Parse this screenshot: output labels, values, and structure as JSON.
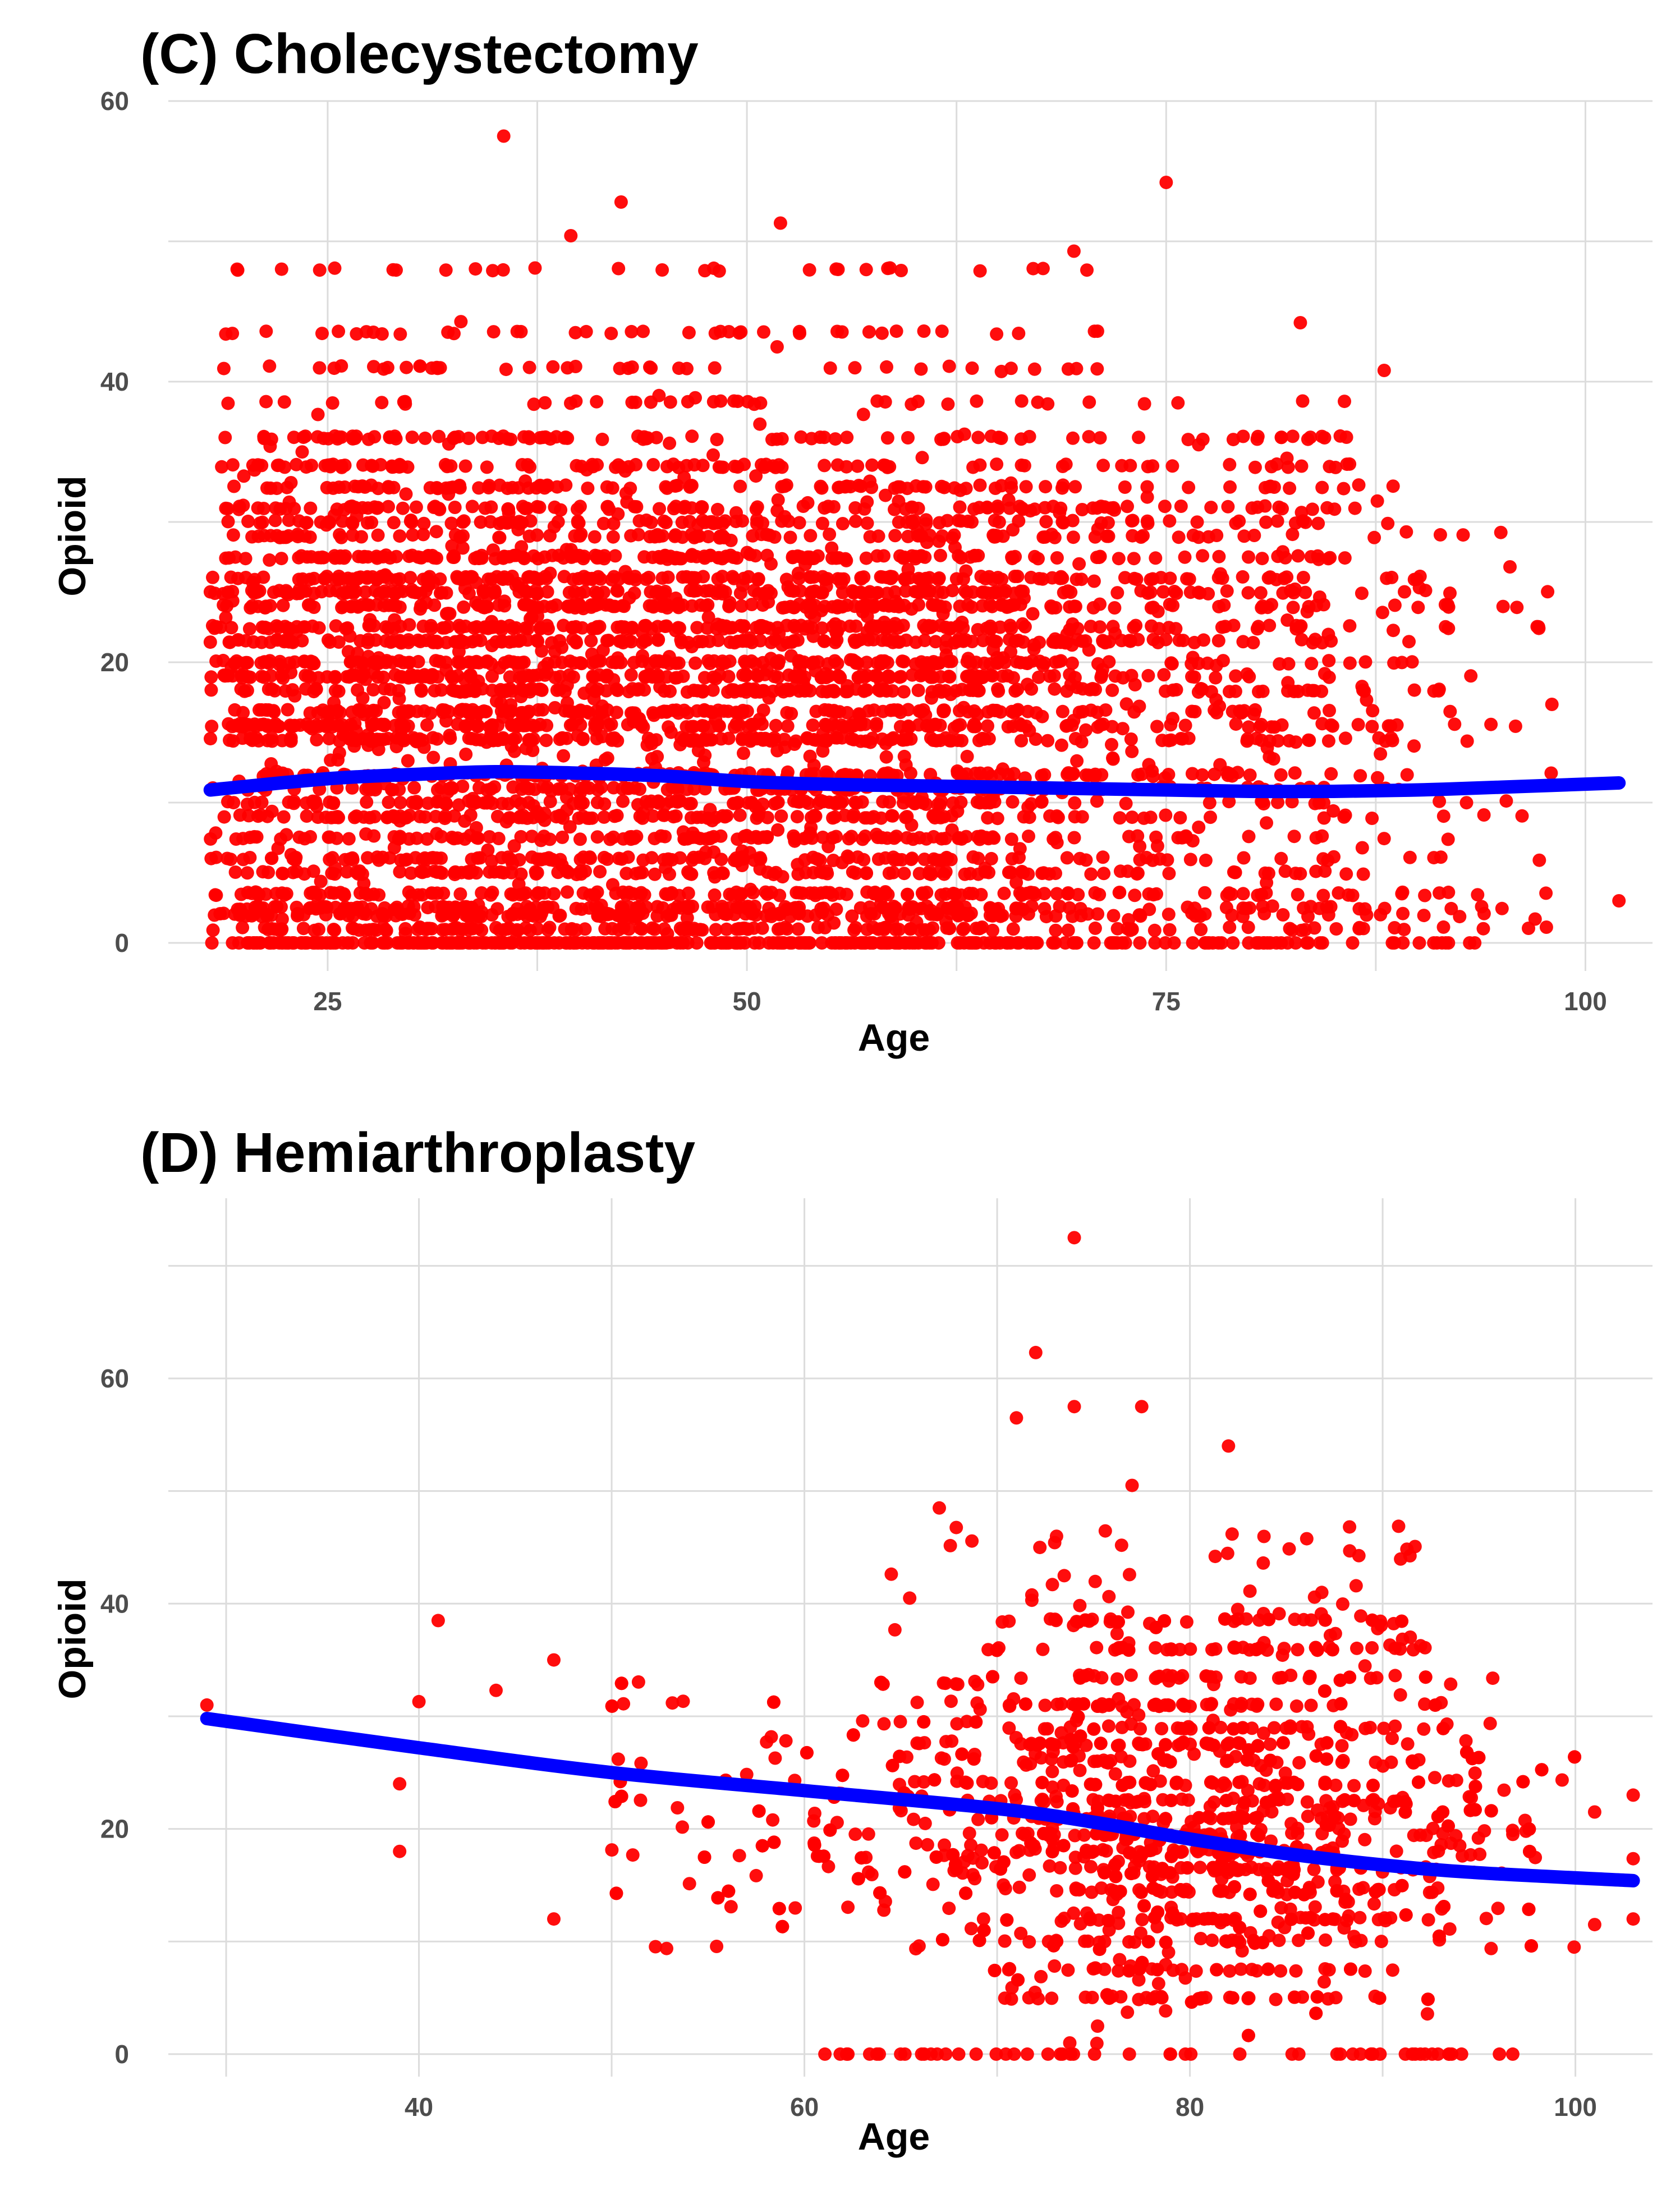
{
  "colors": {
    "points": "#ff0000",
    "trend": "#0000ff",
    "grid": "#dcdcdc",
    "background": "#ffffff"
  },
  "chart_data": [
    {
      "type": "scatter",
      "title": "(C) Cholecystectomy",
      "xlabel": "Age",
      "ylabel": "Opioid",
      "xlim": [
        15.5,
        104
      ],
      "ylim": [
        -2,
        60
      ],
      "xticks": [
        25,
        50,
        75,
        100
      ],
      "yticks": [
        0,
        20,
        40,
        60
      ],
      "grid": true,
      "legend": "none",
      "series": [
        {
          "name": "patients",
          "kind": "points",
          "description": "several thousand patients, ages 18-102; opioid values cluster on horizontal bands",
          "age_range": [
            18,
            102
          ],
          "bands": [
            0,
            1,
            2,
            2.5,
            3.5,
            5,
            6,
            7.5,
            9,
            10,
            11,
            12,
            14.5,
            15.5,
            16.5,
            18,
            19,
            20,
            21.5,
            22.5,
            24,
            25,
            26,
            27.5,
            29,
            30,
            31,
            32.5,
            34,
            36,
            38.5,
            41,
            43.5,
            48
          ],
          "outliers": [
            [
              35.5,
              57.5
            ],
            [
              42.5,
              52.8
            ],
            [
              52,
              51.3
            ],
            [
              39.5,
              50.4
            ],
            [
              75,
              54.2
            ],
            [
              69.5,
              49.3
            ],
            [
              83,
              44.2
            ],
            [
              88,
              40.8
            ],
            [
              102,
              3
            ],
            [
              97,
              1.7
            ],
            [
              98,
              17
            ],
            [
              95.5,
              26.8
            ]
          ]
        },
        {
          "name": "smooth fit",
          "kind": "line",
          "x": [
            18,
            25,
            30,
            35,
            40,
            45,
            50,
            55,
            60,
            65,
            70,
            75,
            80,
            85,
            90,
            95,
            102
          ],
          "y": [
            10.9,
            11.7,
            12.0,
            12.2,
            12.1,
            11.9,
            11.5,
            11.3,
            11.2,
            11.1,
            11.0,
            10.9,
            10.8,
            10.8,
            10.9,
            11.1,
            11.4
          ]
        }
      ]
    },
    {
      "type": "scatter",
      "title": "(D) Hemiarthroplasty",
      "xlabel": "Age",
      "ylabel": "Opioid",
      "xlim": [
        27,
        104
      ],
      "ylim": [
        -2,
        76
      ],
      "xticks": [
        40,
        60,
        80,
        100
      ],
      "yticks": [
        0,
        20,
        40,
        60
      ],
      "grid": true,
      "legend": "none",
      "series": [
        {
          "name": "patients",
          "kind": "points",
          "description": "about 1500 patients, concentrated at ages 70-95 with opioid 5-35",
          "age_range": [
            29,
            103
          ],
          "bands": [
            0,
            5,
            7.5,
            10,
            12,
            14.5,
            16.5,
            18,
            19.5,
            21,
            22.5,
            24,
            26,
            27.5,
            29,
            31,
            33.5,
            36,
            38.5
          ],
          "outliers": [
            [
              74,
              72.5
            ],
            [
              72,
              62.3
            ],
            [
              74,
              57.5
            ],
            [
              77.5,
              57.5
            ],
            [
              71,
              56.5
            ],
            [
              82,
              54
            ],
            [
              67,
              48.5
            ],
            [
              77,
              50.5
            ],
            [
              29,
              31
            ],
            [
              39,
              24
            ],
            [
              39,
              18
            ],
            [
              40,
              31.3
            ],
            [
              41,
              38.5
            ],
            [
              44,
              32.3
            ],
            [
              47,
              35
            ],
            [
              47,
              12
            ],
            [
              103,
              12
            ],
            [
              101,
              11.5
            ],
            [
              103,
              23
            ],
            [
              101,
              21.5
            ]
          ]
        },
        {
          "name": "smooth fit",
          "kind": "line",
          "x": [
            29,
            40,
            50,
            60,
            70,
            75,
            80,
            85,
            90,
            95,
            103
          ],
          "y": [
            29.8,
            27.2,
            25.0,
            23.4,
            21.8,
            20.6,
            19.1,
            17.8,
            16.8,
            16.1,
            15.4
          ]
        }
      ]
    }
  ]
}
